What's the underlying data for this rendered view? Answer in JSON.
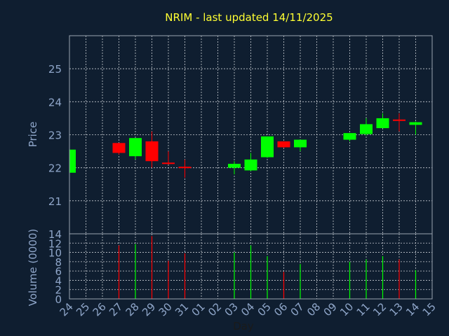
{
  "chart_data": {
    "type": "candlestick",
    "title": "NRIM - last updated 14/11/2025",
    "price_axis": {
      "label": "Price",
      "ylim": [
        20,
        26
      ],
      "ticks": [
        21,
        22,
        23,
        24,
        25
      ]
    },
    "volume_axis": {
      "label": "Volume (0000)",
      "ylim": [
        0,
        14
      ],
      "ticks": [
        0,
        2,
        4,
        6,
        8,
        10,
        12,
        14
      ]
    },
    "xlabel": "Day",
    "x_ticks": [
      "24",
      "25",
      "26",
      "27",
      "28",
      "29",
      "30",
      "31",
      "01",
      "02",
      "03",
      "04",
      "05",
      "06",
      "07",
      "08",
      "09",
      "10",
      "11",
      "12",
      "13",
      "14",
      "15"
    ],
    "grid": true,
    "colors": {
      "up": "#00ff00",
      "down": "#ff0000",
      "background": "#0f1e30",
      "title": "#ffff33",
      "axis_text": "#8fa6c9"
    },
    "candles": [
      {
        "day": "24",
        "open": 21.85,
        "high": 22.55,
        "low": 21.85,
        "close": 22.55,
        "volume": 0
      },
      {
        "day": "27",
        "open": 22.75,
        "high": 22.75,
        "low": 22.4,
        "close": 22.45,
        "volume": 11.5
      },
      {
        "day": "28",
        "open": 22.35,
        "high": 22.9,
        "low": 22.25,
        "close": 22.9,
        "volume": 11.8
      },
      {
        "day": "29",
        "open": 22.8,
        "high": 23.1,
        "low": 22.0,
        "close": 22.2,
        "volume": 13.5
      },
      {
        "day": "30",
        "open": 22.15,
        "high": 22.5,
        "low": 22.1,
        "close": 22.12,
        "volume": 8.2
      },
      {
        "day": "31",
        "open": 22.02,
        "high": 22.25,
        "low": 21.7,
        "close": 22.0,
        "volume": 9.8
      },
      {
        "day": "03",
        "open": 22.0,
        "high": 22.2,
        "low": 21.8,
        "close": 22.12,
        "volume": 10.0
      },
      {
        "day": "04",
        "open": 21.92,
        "high": 22.45,
        "low": 21.9,
        "close": 22.25,
        "volume": 11.5
      },
      {
        "day": "05",
        "open": 22.32,
        "high": 22.95,
        "low": 22.3,
        "close": 22.95,
        "volume": 9.2
      },
      {
        "day": "06",
        "open": 22.8,
        "high": 22.8,
        "low": 22.6,
        "close": 22.62,
        "volume": 5.8
      },
      {
        "day": "07",
        "open": 22.62,
        "high": 22.85,
        "low": 22.5,
        "close": 22.85,
        "volume": 7.5
      },
      {
        "day": "10",
        "open": 22.85,
        "high": 23.05,
        "low": 22.8,
        "close": 23.05,
        "volume": 8.0
      },
      {
        "day": "11",
        "open": 23.02,
        "high": 23.5,
        "low": 22.98,
        "close": 23.32,
        "volume": 8.5
      },
      {
        "day": "12",
        "open": 23.2,
        "high": 23.65,
        "low": 23.2,
        "close": 23.5,
        "volume": 9.2
      },
      {
        "day": "13",
        "open": 23.45,
        "high": 23.65,
        "low": 23.1,
        "close": 23.43,
        "volume": 8.5
      },
      {
        "day": "14",
        "open": 23.3,
        "high": 23.4,
        "low": 23.0,
        "close": 23.38,
        "volume": 6.2
      }
    ]
  }
}
